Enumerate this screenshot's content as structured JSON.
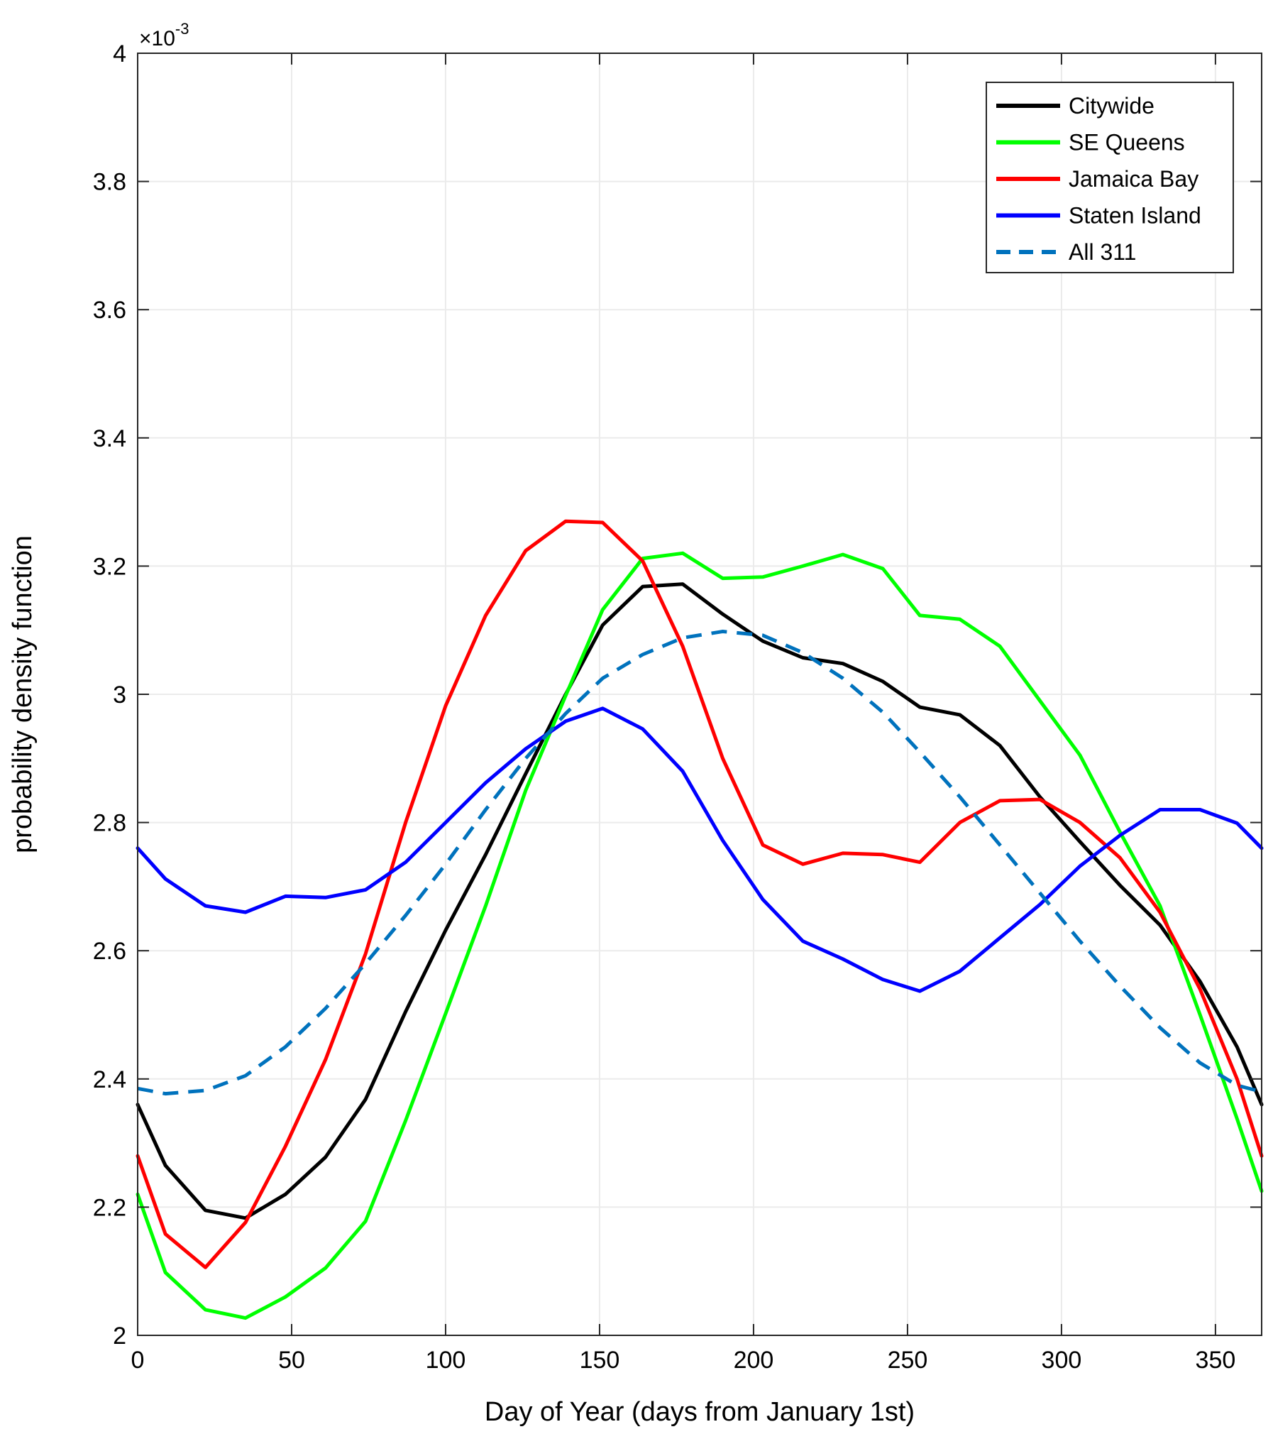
{
  "chart_data": {
    "type": "line",
    "title": "",
    "xlabel": "Day of Year (days from January 1st)",
    "ylabel": "probability density function",
    "y_scale_prefix": "×10",
    "y_scale_exponent": "-3",
    "xlim": [
      0,
      365
    ],
    "ylim": [
      2.0,
      4.0
    ],
    "xticks": [
      0,
      50,
      100,
      150,
      200,
      250,
      300,
      350
    ],
    "yticks": [
      2,
      2.2,
      2.4,
      2.6,
      2.8,
      3,
      3.2,
      3.4,
      3.6,
      3.8,
      4
    ],
    "ytick_labels": [
      "2",
      "2.2",
      "2.4",
      "2.6",
      "2.8",
      "3",
      "3.2",
      "3.4",
      "3.6",
      "3.8",
      "4"
    ],
    "grid": true,
    "legend_position": "top-right",
    "x": [
      0,
      9,
      22,
      35,
      48,
      61,
      74,
      87,
      100,
      113,
      126,
      139,
      151,
      164,
      177,
      190,
      203,
      216,
      229,
      242,
      254,
      267,
      280,
      293,
      306,
      319,
      332,
      345,
      357,
      365
    ],
    "series": [
      {
        "name": "Citywide",
        "color": "#000000",
        "style": "solid",
        "values": [
          2.36,
          2.265,
          2.195,
          2.183,
          2.22,
          2.278,
          2.368,
          2.505,
          2.632,
          2.75,
          2.876,
          3.0,
          3.108,
          3.168,
          3.172,
          3.125,
          3.083,
          3.057,
          3.048,
          3.02,
          2.98,
          2.968,
          2.92,
          2.84,
          2.77,
          2.702,
          2.64,
          2.552,
          2.45,
          2.36
        ]
      },
      {
        "name": "SE Queens",
        "color": "#00ff00",
        "style": "solid",
        "values": [
          2.22,
          2.098,
          2.04,
          2.027,
          2.06,
          2.105,
          2.178,
          2.335,
          2.502,
          2.67,
          2.85,
          2.998,
          3.132,
          3.212,
          3.22,
          3.181,
          3.183,
          3.2,
          3.218,
          3.196,
          3.123,
          3.117,
          3.075,
          2.99,
          2.905,
          2.785,
          2.67,
          2.5,
          2.338,
          2.225
        ]
      },
      {
        "name": "Jamaica Bay",
        "color": "#ff0000",
        "style": "solid",
        "values": [
          2.28,
          2.158,
          2.106,
          2.176,
          2.295,
          2.43,
          2.595,
          2.8,
          2.982,
          3.123,
          3.224,
          3.27,
          3.268,
          3.208,
          3.075,
          2.9,
          2.765,
          2.735,
          2.752,
          2.75,
          2.738,
          2.8,
          2.834,
          2.836,
          2.8,
          2.745,
          2.66,
          2.54,
          2.4,
          2.28
        ]
      },
      {
        "name": "Staten Island",
        "color": "#0000ff",
        "style": "solid",
        "values": [
          2.76,
          2.712,
          2.67,
          2.66,
          2.685,
          2.683,
          2.695,
          2.738,
          2.8,
          2.862,
          2.915,
          2.958,
          2.978,
          2.946,
          2.88,
          2.772,
          2.68,
          2.615,
          2.587,
          2.555,
          2.537,
          2.568,
          2.62,
          2.672,
          2.732,
          2.78,
          2.82,
          2.82,
          2.799,
          2.76
        ]
      },
      {
        "name": "All 311",
        "color": "#0072bd",
        "style": "dashed",
        "values": [
          2.385,
          2.377,
          2.382,
          2.405,
          2.45,
          2.51,
          2.58,
          2.655,
          2.735,
          2.82,
          2.9,
          2.97,
          3.025,
          3.062,
          3.088,
          3.098,
          3.092,
          3.065,
          3.025,
          2.972,
          2.91,
          2.84,
          2.765,
          2.69,
          2.615,
          2.545,
          2.48,
          2.425,
          2.39,
          2.38
        ]
      }
    ]
  }
}
